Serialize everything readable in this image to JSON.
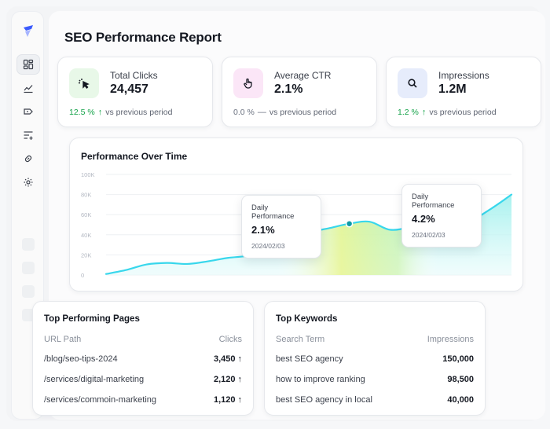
{
  "page": {
    "title": "SEO Performance Report"
  },
  "sidebar": {
    "logo": "logo-icon",
    "items": [
      {
        "name": "dashboard-icon",
        "active": true
      },
      {
        "name": "analytics-icon",
        "active": false
      },
      {
        "name": "tag-icon",
        "active": false
      },
      {
        "name": "filter-icon",
        "active": false
      },
      {
        "name": "link-icon",
        "active": false
      },
      {
        "name": "settings-icon",
        "active": false
      }
    ]
  },
  "stats": [
    {
      "label": "Total Clicks",
      "value": "24,457",
      "change": "12.5 %",
      "arrow": "↑",
      "trend": "up",
      "suffix": "vs previous period",
      "icon": "cursor-click-icon",
      "icon_bg": "#e8f8e8"
    },
    {
      "label": "Average CTR",
      "value": "2.1%",
      "change": "0.0 %",
      "arrow": "—",
      "trend": "flat",
      "suffix": "vs previous period",
      "icon": "pointer-hand-icon",
      "icon_bg": "#fbe6f7"
    },
    {
      "label": "Impressions",
      "value": "1.2M",
      "change": "1.2 %",
      "arrow": "↑",
      "trend": "up",
      "suffix": "vs previous period",
      "icon": "search-icon",
      "icon_bg": "#e6ecfb"
    }
  ],
  "performance": {
    "title": "Performance Over Time",
    "tooltips": [
      {
        "label": "Daily Performance",
        "value": "2.1%",
        "date": "2024/02/03"
      },
      {
        "label": "Daily Performance",
        "value": "4.2%",
        "date": "2024/02/03"
      }
    ]
  },
  "chart_data": {
    "type": "area",
    "title": "Performance Over Time",
    "xlabel": "",
    "ylabel": "",
    "ylim": [
      0,
      100000
    ],
    "yticks": [
      0,
      20000,
      40000,
      60000,
      80000,
      100000
    ],
    "ytick_labels": [
      "0",
      "20K",
      "40K",
      "60K",
      "80K",
      "100K"
    ],
    "grid": true,
    "x": [
      0,
      1,
      2,
      3,
      4,
      5,
      6,
      7,
      8,
      9,
      10,
      11,
      12,
      13,
      14,
      15,
      16,
      17,
      18,
      19,
      20
    ],
    "values": [
      1000,
      5000,
      10500,
      12000,
      11000,
      13500,
      17000,
      19000,
      23000,
      32000,
      42000,
      46500,
      51000,
      53000,
      45000,
      48000,
      56000,
      58000,
      55000,
      66000,
      80000
    ],
    "highlights": [
      12,
      16
    ],
    "colors": {
      "line": "#38d7ec",
      "fill_top": "#a7f3f0",
      "fill_warm": "#d9f37a",
      "marker": "#0f9aa6"
    }
  },
  "top_pages": {
    "title": "Top Performing Pages",
    "columns": [
      "URL Path",
      "Clicks"
    ],
    "rows": [
      {
        "path": "/blog/seo-tips-2024",
        "clicks": "3,450",
        "arrow": "↑"
      },
      {
        "path": "/services/digital-marketing",
        "clicks": "2,120",
        "arrow": "↑"
      },
      {
        "path": "/services/commoin-marketing",
        "clicks": "1,120",
        "arrow": "↑"
      }
    ]
  },
  "top_keywords": {
    "title": "Top Keywords",
    "columns": [
      "Search Term",
      "Impressions"
    ],
    "rows": [
      {
        "term": "best SEO agency",
        "impressions": "150,000"
      },
      {
        "term": "how to improve ranking",
        "impressions": "98,500"
      },
      {
        "term": "best SEO agency in local",
        "impressions": "40,000"
      }
    ]
  }
}
